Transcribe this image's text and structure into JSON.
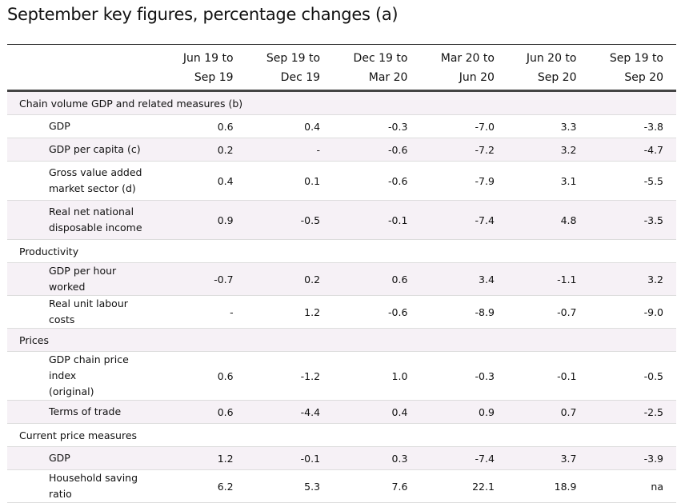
{
  "title": "September key figures, percentage changes (a)",
  "columns": [
    [
      "Jun 19 to",
      "Sep 19"
    ],
    [
      "Sep 19 to",
      "Dec 19"
    ],
    [
      "Dec 19 to",
      "Mar 20"
    ],
    [
      "Mar 20 to",
      "Jun 20"
    ],
    [
      "Jun 20 to",
      "Sep 20"
    ],
    [
      "Sep 19 to",
      "Sep 20"
    ]
  ],
  "rows": [
    {
      "section": "Chain volume GDP and related measures (b)"
    },
    {
      "label": [
        "GDP"
      ],
      "values": [
        "0.6",
        "0.4",
        "-0.3",
        "-7.0",
        "3.3",
        "-3.8"
      ]
    },
    {
      "label": [
        "GDP per capita (c)"
      ],
      "values": [
        "0.2",
        "-",
        "-0.6",
        "-7.2",
        "3.2",
        "-4.7"
      ]
    },
    {
      "label": [
        "Gross value added",
        "market sector (d)"
      ],
      "values": [
        "0.4",
        "0.1",
        "-0.6",
        "-7.9",
        "3.1",
        "-5.5"
      ]
    },
    {
      "label": [
        "Real net national",
        "disposable income"
      ],
      "values": [
        "0.9",
        "-0.5",
        "-0.1",
        "-7.4",
        "4.8",
        "-3.5"
      ]
    },
    {
      "section": "Productivity"
    },
    {
      "label": [
        "GDP per hour worked"
      ],
      "values": [
        "-0.7",
        "0.2",
        "0.6",
        "3.4",
        "-1.1",
        "3.2"
      ]
    },
    {
      "label": [
        "Real unit labour costs"
      ],
      "values": [
        "-",
        "1.2",
        "-0.6",
        "-8.9",
        "-0.7",
        "-9.0"
      ]
    },
    {
      "section": "Prices"
    },
    {
      "label": [
        "GDP chain price index",
        "(original)"
      ],
      "values": [
        "0.6",
        "-1.2",
        "1.0",
        "-0.3",
        "-0.1",
        "-0.5"
      ]
    },
    {
      "label": [
        "Terms of trade"
      ],
      "values": [
        "0.6",
        "-4.4",
        "0.4",
        "0.9",
        "0.7",
        "-2.5"
      ]
    },
    {
      "section": "Current price measures"
    },
    {
      "label": [
        "GDP"
      ],
      "values": [
        "1.2",
        "-0.1",
        "0.3",
        "-7.4",
        "3.7",
        "-3.9"
      ]
    },
    {
      "label": [
        "Household saving ratio"
      ],
      "values": [
        "6.2",
        "5.3",
        "7.6",
        "22.1",
        "18.9",
        "na"
      ]
    }
  ]
}
